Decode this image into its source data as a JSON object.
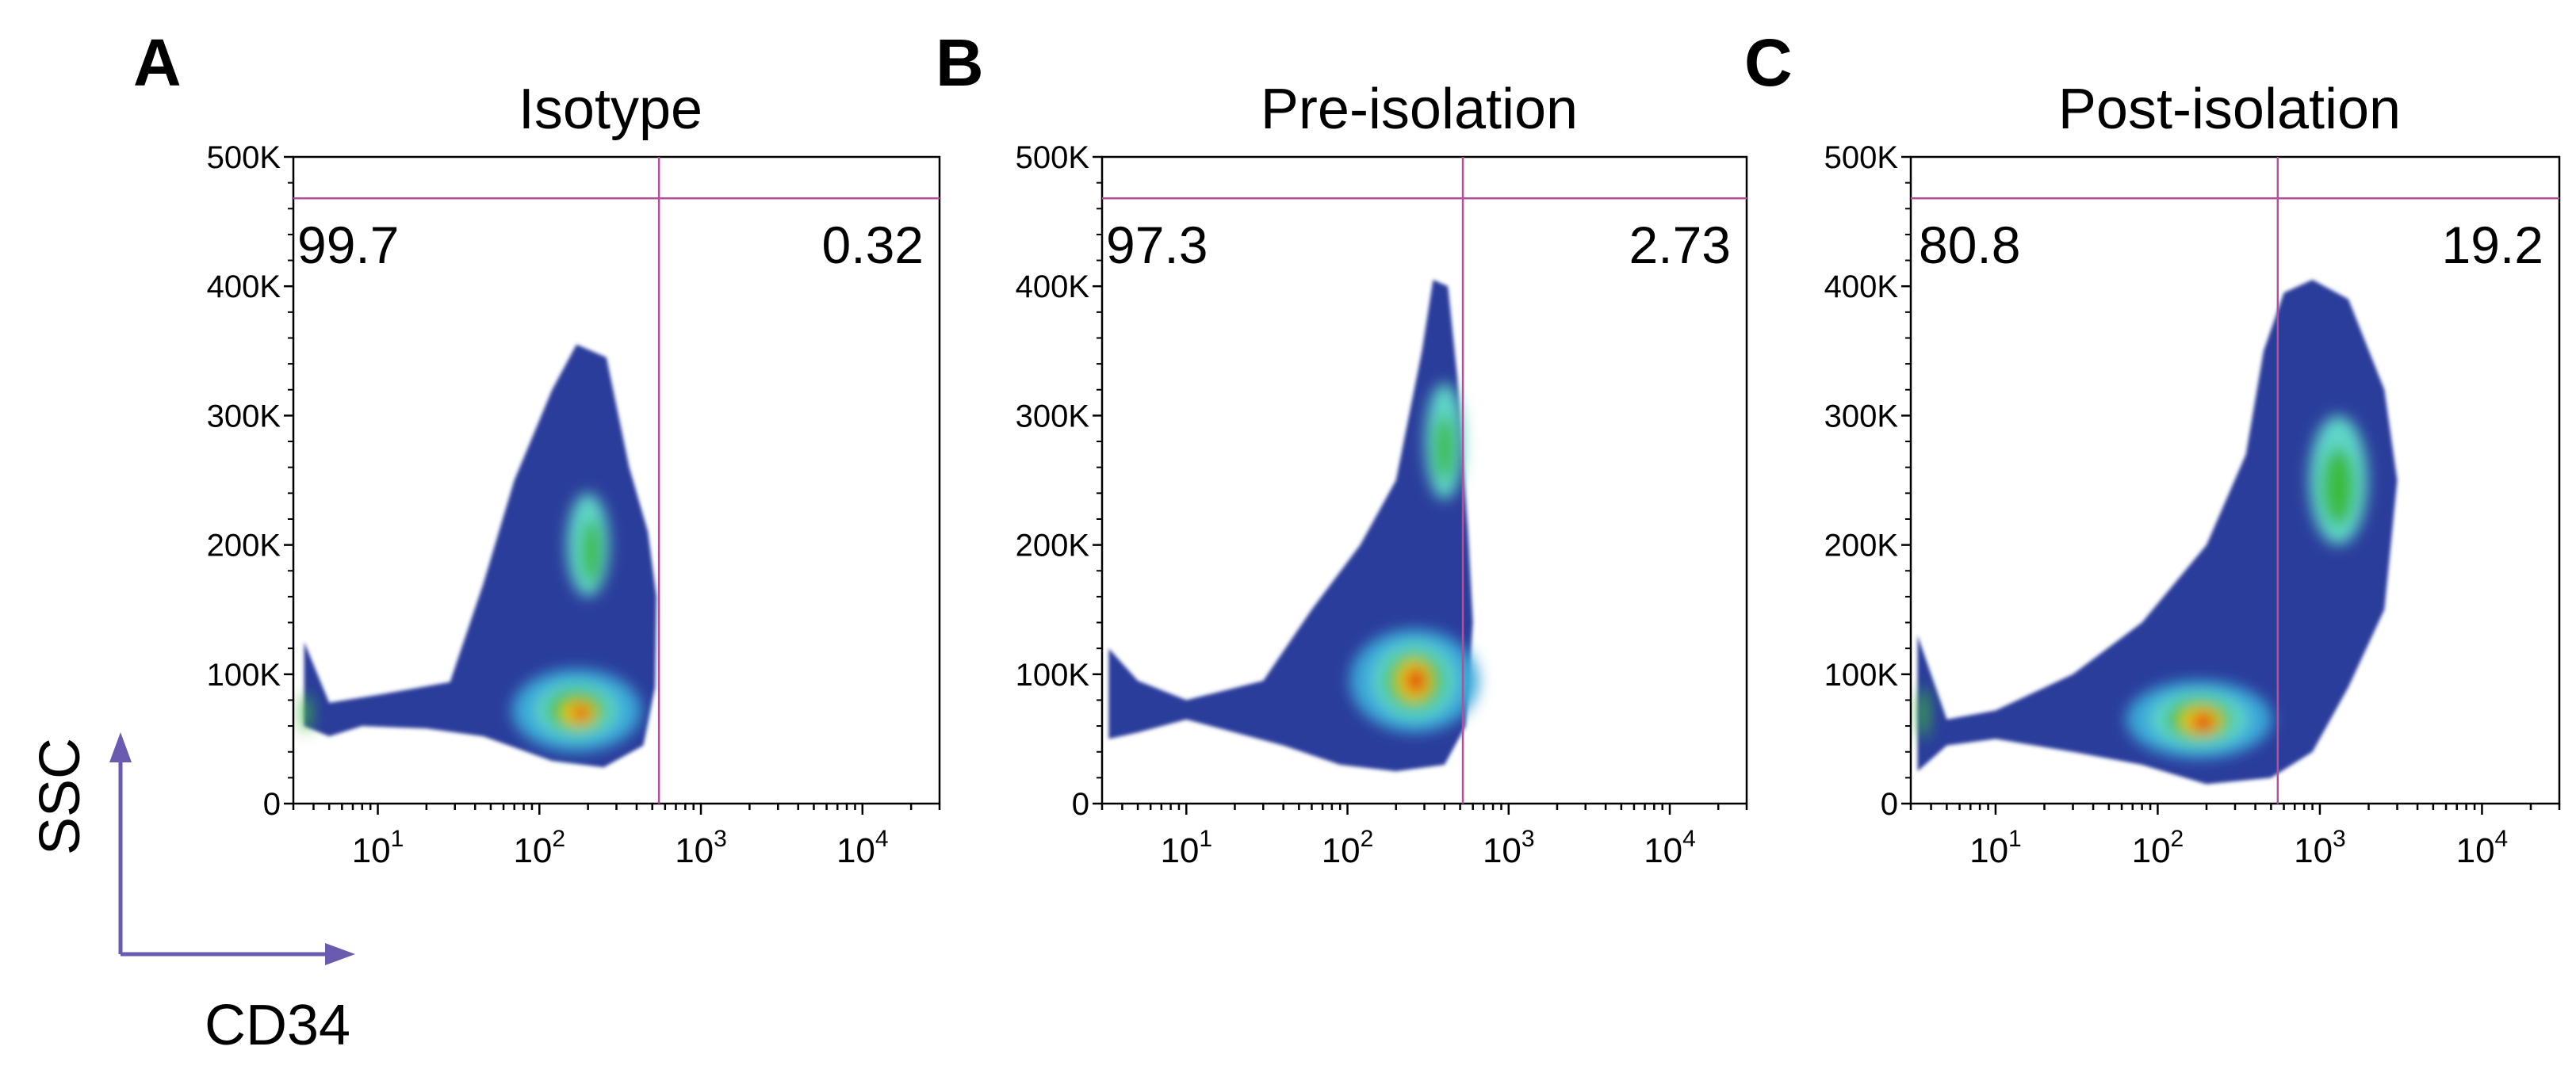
{
  "figure": {
    "x_axis_label": "CD34",
    "y_axis_label": "SSC",
    "arrow_color": "#6a5ab0",
    "gate_color": "#b4509b",
    "density_colors": [
      "#2b3d9b",
      "#3aa8d8",
      "#5ed6c8",
      "#3dbb3d",
      "#e8d81a",
      "#f06010",
      "#d81010"
    ]
  },
  "chart_data": [
    {
      "type": "scatter",
      "panel_letter": "A",
      "title": "Isotype",
      "xlabel": "CD34",
      "ylabel": "SSC",
      "x_scale": "log",
      "xlim": [
        3,
        30000
      ],
      "ylim": [
        0,
        500000
      ],
      "x_ticks": [
        {
          "exp": "1"
        },
        {
          "exp": "2"
        },
        {
          "exp": "3"
        },
        {
          "exp": "4"
        }
      ],
      "y_ticks": [
        "0",
        "100K",
        "200K",
        "300K",
        "400K",
        "500K"
      ],
      "gate": {
        "x": 550,
        "y": 468000
      },
      "quadrants": {
        "left": "99.7",
        "right": "0.32"
      },
      "density": {
        "outline": [
          [
            3.5,
            60000
          ],
          [
            3.5,
            125000
          ],
          [
            5,
            78000
          ],
          [
            10,
            84000
          ],
          [
            28,
            94000
          ],
          [
            45,
            170000
          ],
          [
            70,
            250000
          ],
          [
            120,
            320000
          ],
          [
            170,
            355000
          ],
          [
            260,
            345000
          ],
          [
            360,
            260000
          ],
          [
            470,
            210000
          ],
          [
            530,
            160000
          ],
          [
            520,
            90000
          ],
          [
            440,
            45000
          ],
          [
            250,
            28000
          ],
          [
            120,
            33000
          ],
          [
            45,
            52000
          ],
          [
            20,
            58000
          ],
          [
            8,
            60000
          ],
          [
            5,
            52000
          ]
        ],
        "blobs": [
          {
            "x": 200,
            "y": 200000,
            "sx": 0.13,
            "sy": 40000,
            "level": 2
          },
          {
            "x": 210,
            "y": 195000,
            "sx": 0.06,
            "sy": 25000,
            "level": 3
          },
          {
            "x": 170,
            "y": 72000,
            "sx": 0.4,
            "sy": 32000,
            "level": 1
          },
          {
            "x": 170,
            "y": 72000,
            "sx": 0.26,
            "sy": 22000,
            "level": 2
          },
          {
            "x": 170,
            "y": 72000,
            "sx": 0.18,
            "sy": 16000,
            "level": 3
          },
          {
            "x": 175,
            "y": 70000,
            "sx": 0.11,
            "sy": 10000,
            "level": 4
          },
          {
            "x": 180,
            "y": 70000,
            "sx": 0.06,
            "sy": 7000,
            "level": 5
          },
          {
            "x": 185,
            "y": 70000,
            "sx": 0.03,
            "sy": 4000,
            "level": 6
          },
          {
            "x": 3.6,
            "y": 70000,
            "sx": 0.03,
            "sy": 15000,
            "level": 3
          }
        ]
      }
    },
    {
      "type": "scatter",
      "panel_letter": "B",
      "title": "Pre-isolation",
      "xlabel": "CD34",
      "ylabel": "SSC",
      "x_scale": "log",
      "xlim": [
        3,
        30000
      ],
      "ylim": [
        0,
        500000
      ],
      "x_ticks": [
        {
          "exp": "1"
        },
        {
          "exp": "2"
        },
        {
          "exp": "3"
        },
        {
          "exp": "4"
        }
      ],
      "y_ticks": [
        "0",
        "100K",
        "200K",
        "300K",
        "400K",
        "500K"
      ],
      "gate": {
        "x": 520,
        "y": 468000
      },
      "quadrants": {
        "left": "97.3",
        "right": "2.73"
      },
      "density": {
        "outline": [
          [
            3.3,
            50000
          ],
          [
            3.3,
            120000
          ],
          [
            5,
            95000
          ],
          [
            10,
            80000
          ],
          [
            30,
            95000
          ],
          [
            60,
            150000
          ],
          [
            120,
            200000
          ],
          [
            200,
            250000
          ],
          [
            290,
            350000
          ],
          [
            340,
            405000
          ],
          [
            420,
            400000
          ],
          [
            480,
            330000
          ],
          [
            560,
            210000
          ],
          [
            600,
            140000
          ],
          [
            540,
            60000
          ],
          [
            400,
            30000
          ],
          [
            200,
            25000
          ],
          [
            90,
            30000
          ],
          [
            40,
            45000
          ],
          [
            20,
            55000
          ],
          [
            10,
            65000
          ],
          [
            5,
            55000
          ]
        ],
        "blobs": [
          {
            "x": 400,
            "y": 280000,
            "sx": 0.12,
            "sy": 45000,
            "level": 2
          },
          {
            "x": 400,
            "y": 275000,
            "sx": 0.06,
            "sy": 25000,
            "level": 3
          },
          {
            "x": 260,
            "y": 95000,
            "sx": 0.4,
            "sy": 40000,
            "level": 1
          },
          {
            "x": 260,
            "y": 95000,
            "sx": 0.26,
            "sy": 30000,
            "level": 2
          },
          {
            "x": 260,
            "y": 95000,
            "sx": 0.18,
            "sy": 22000,
            "level": 3
          },
          {
            "x": 260,
            "y": 95000,
            "sx": 0.11,
            "sy": 16000,
            "level": 4
          },
          {
            "x": 265,
            "y": 95000,
            "sx": 0.07,
            "sy": 11000,
            "level": 5
          },
          {
            "x": 270,
            "y": 96000,
            "sx": 0.04,
            "sy": 7000,
            "level": 6
          }
        ]
      }
    },
    {
      "type": "scatter",
      "panel_letter": "C",
      "title": "Post-isolation",
      "xlabel": "CD34",
      "ylabel": "SSC",
      "x_scale": "log",
      "xlim": [
        3,
        30000
      ],
      "ylim": [
        0,
        500000
      ],
      "x_ticks": [
        {
          "exp": "1"
        },
        {
          "exp": "2"
        },
        {
          "exp": "3"
        },
        {
          "exp": "4"
        }
      ],
      "y_ticks": [
        "0",
        "100K",
        "200K",
        "300K",
        "400K",
        "500K"
      ],
      "gate": {
        "x": 550,
        "y": 468000
      },
      "quadrants": {
        "left": "80.8",
        "right": "19.2"
      },
      "density": {
        "outline": [
          [
            3.3,
            25000
          ],
          [
            3.3,
            130000
          ],
          [
            5,
            65000
          ],
          [
            10,
            72000
          ],
          [
            30,
            100000
          ],
          [
            80,
            140000
          ],
          [
            200,
            200000
          ],
          [
            350,
            270000
          ],
          [
            450,
            350000
          ],
          [
            600,
            395000
          ],
          [
            900,
            405000
          ],
          [
            1500,
            390000
          ],
          [
            2500,
            320000
          ],
          [
            3000,
            250000
          ],
          [
            2500,
            150000
          ],
          [
            1500,
            90000
          ],
          [
            900,
            40000
          ],
          [
            500,
            20000
          ],
          [
            200,
            15000
          ],
          [
            80,
            30000
          ],
          [
            30,
            40000
          ],
          [
            10,
            50000
          ],
          [
            5,
            45000
          ]
        ],
        "blobs": [
          {
            "x": 1300,
            "y": 250000,
            "sx": 0.18,
            "sy": 50000,
            "level": 2
          },
          {
            "x": 1300,
            "y": 245000,
            "sx": 0.1,
            "sy": 30000,
            "level": 3
          },
          {
            "x": 180,
            "y": 65000,
            "sx": 0.45,
            "sy": 30000,
            "level": 1
          },
          {
            "x": 180,
            "y": 65000,
            "sx": 0.3,
            "sy": 22000,
            "level": 2
          },
          {
            "x": 180,
            "y": 65000,
            "sx": 0.2,
            "sy": 16000,
            "level": 3
          },
          {
            "x": 185,
            "y": 64000,
            "sx": 0.13,
            "sy": 11000,
            "level": 4
          },
          {
            "x": 190,
            "y": 63000,
            "sx": 0.08,
            "sy": 8000,
            "level": 5
          },
          {
            "x": 195,
            "y": 63000,
            "sx": 0.04,
            "sy": 5000,
            "level": 6
          },
          {
            "x": 3.6,
            "y": 70000,
            "sx": 0.03,
            "sy": 20000,
            "level": 3
          }
        ]
      }
    }
  ]
}
